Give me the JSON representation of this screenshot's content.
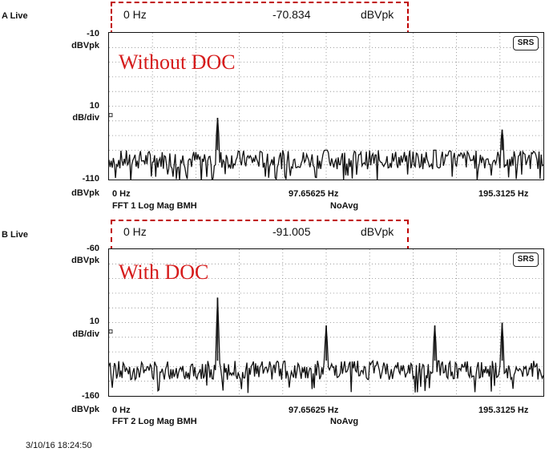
{
  "chart_data": [
    {
      "type": "line",
      "channel_label": "A Live",
      "readout": {
        "freq": "0 Hz",
        "value": "-70.834",
        "unit": "dBVpk"
      },
      "annotation": "Without DOC",
      "badge": "SRS",
      "y_top": {
        "value": "-10",
        "unit": "dBVpk"
      },
      "y_scale": {
        "value": "10",
        "unit": "dB/div"
      },
      "y_bottom": {
        "value": "-110",
        "unit": "dBVpk"
      },
      "ylim": [
        -110,
        -10
      ],
      "xlim": [
        0,
        195.3125
      ],
      "x_ticks": {
        "start": "0 Hz",
        "mid": "97.65625 Hz",
        "end": "195.3125 Hz"
      },
      "footer": {
        "left": "FFT 1 Log Mag BMH",
        "right": "NoAvg"
      },
      "grid": true,
      "noise_floor": [
        -90,
        -103
      ],
      "peaks": [
        {
          "x": 48.8,
          "y": -68
        },
        {
          "x": 97.7,
          "y": -90
        },
        {
          "x": 146.5,
          "y": -90
        },
        {
          "x": 176.8,
          "y": -76
        }
      ],
      "series": [
        {
          "x_start": 0,
          "x_end": 195.3125,
          "n": 400,
          "seed": 7
        }
      ]
    },
    {
      "type": "line",
      "channel_label": "B Live",
      "readout": {
        "freq": "0 Hz",
        "value": "-91.005",
        "unit": "dBVpk"
      },
      "annotation": "With DOC",
      "badge": "SRS",
      "y_top": {
        "value": "-60",
        "unit": "dBVpk"
      },
      "y_scale": {
        "value": "10",
        "unit": "dB/div"
      },
      "y_bottom": {
        "value": "-160",
        "unit": "dBVpk"
      },
      "ylim": [
        -160,
        -60
      ],
      "xlim": [
        0,
        195.3125
      ],
      "x_ticks": {
        "start": "0 Hz",
        "mid": "97.65625 Hz",
        "end": "195.3125 Hz"
      },
      "footer": {
        "left": "FFT 2 Log Mag BMH",
        "right": "NoAvg"
      },
      "grid": true,
      "noise_floor": [
        -136,
        -149
      ],
      "peaks": [
        {
          "x": 48.8,
          "y": -93
        },
        {
          "x": 97.7,
          "y": -112
        },
        {
          "x": 146.5,
          "y": -112
        },
        {
          "x": 176.8,
          "y": -110
        }
      ],
      "series": [
        {
          "x_start": 0,
          "x_end": 195.3125,
          "n": 400,
          "seed": 13
        }
      ]
    }
  ],
  "timestamp": "3/10/16  18:24:50"
}
